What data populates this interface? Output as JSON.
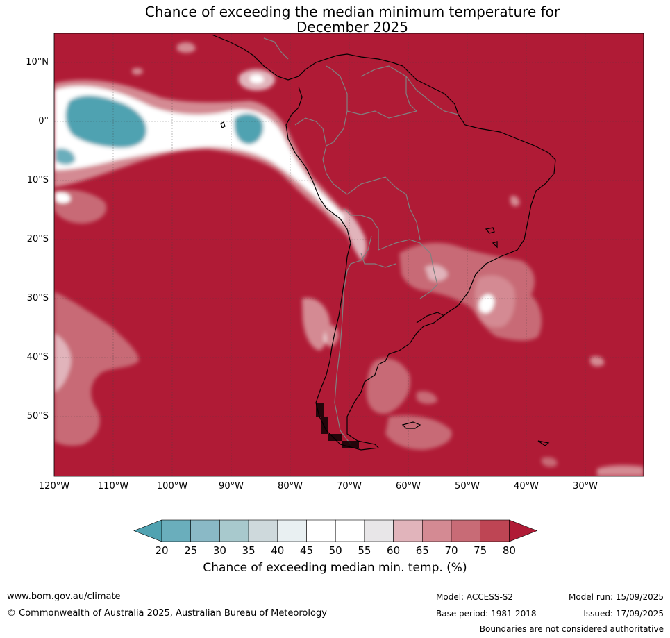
{
  "title_line1": "Chance of exceeding the median minimum temperature for",
  "title_line2": "December 2025",
  "colors": {
    "ocean_high": "#b01b36",
    "land_outline": "#000000",
    "border": "#808080",
    "grid": "#404040"
  },
  "map": {
    "lat_labels": [
      "10°N",
      "0°",
      "10°S",
      "20°S",
      "30°S",
      "40°S",
      "50°S"
    ],
    "lon_labels": [
      "120°W",
      "110°W",
      "100°W",
      "90°W",
      "80°W",
      "70°W",
      "60°W",
      "50°W",
      "40°W",
      "30°W"
    ]
  },
  "colorbar": {
    "ticks": [
      "20",
      "25",
      "30",
      "35",
      "40",
      "45",
      "50",
      "55",
      "60",
      "65",
      "70",
      "75",
      "80"
    ],
    "colors": [
      "#50a2b1",
      "#6aaebc",
      "#8ab9c6",
      "#a8c9cd",
      "#ced9dc",
      "#e9f0f2",
      "#ffffff",
      "#ffffff",
      "#e8e6e8",
      "#e1b4bb",
      "#d48a93",
      "#c86b76",
      "#be4554",
      "#b01b36"
    ],
    "label": "Chance of exceeding median min. temp. (%)"
  },
  "footer": {
    "url": "www.bom.gov.au/climate",
    "copyright": "© Commonwealth of Australia 2025, Australian Bureau of Meteorology",
    "model": "Model: ACCESS-S2",
    "base_period": "Base period: 1981-2018",
    "model_run": "Model run: 15/09/2025",
    "issued": "Issued: 17/09/2025",
    "disclaimer": "Boundaries are not considered authoritative"
  }
}
